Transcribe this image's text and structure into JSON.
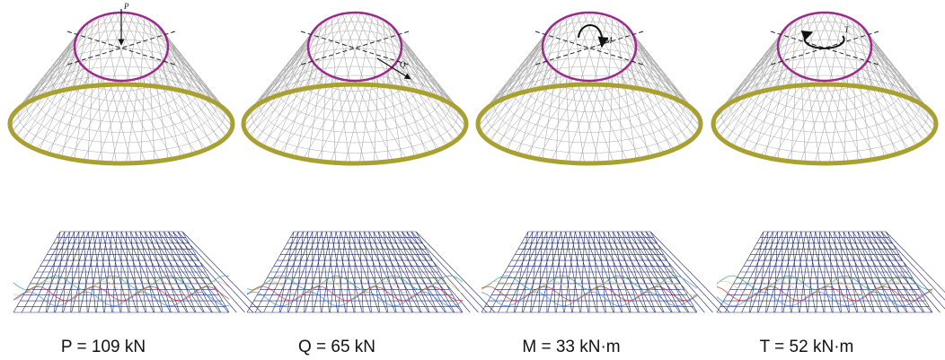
{
  "panels": [
    {
      "load_label": "P",
      "caption": "P = 109 kN"
    },
    {
      "load_label": "Q",
      "caption": "Q = 65 kN"
    },
    {
      "load_label": "M",
      "caption": "M = 33 kN·m"
    },
    {
      "load_label": "T",
      "caption": "T = 52 kN·m"
    }
  ]
}
